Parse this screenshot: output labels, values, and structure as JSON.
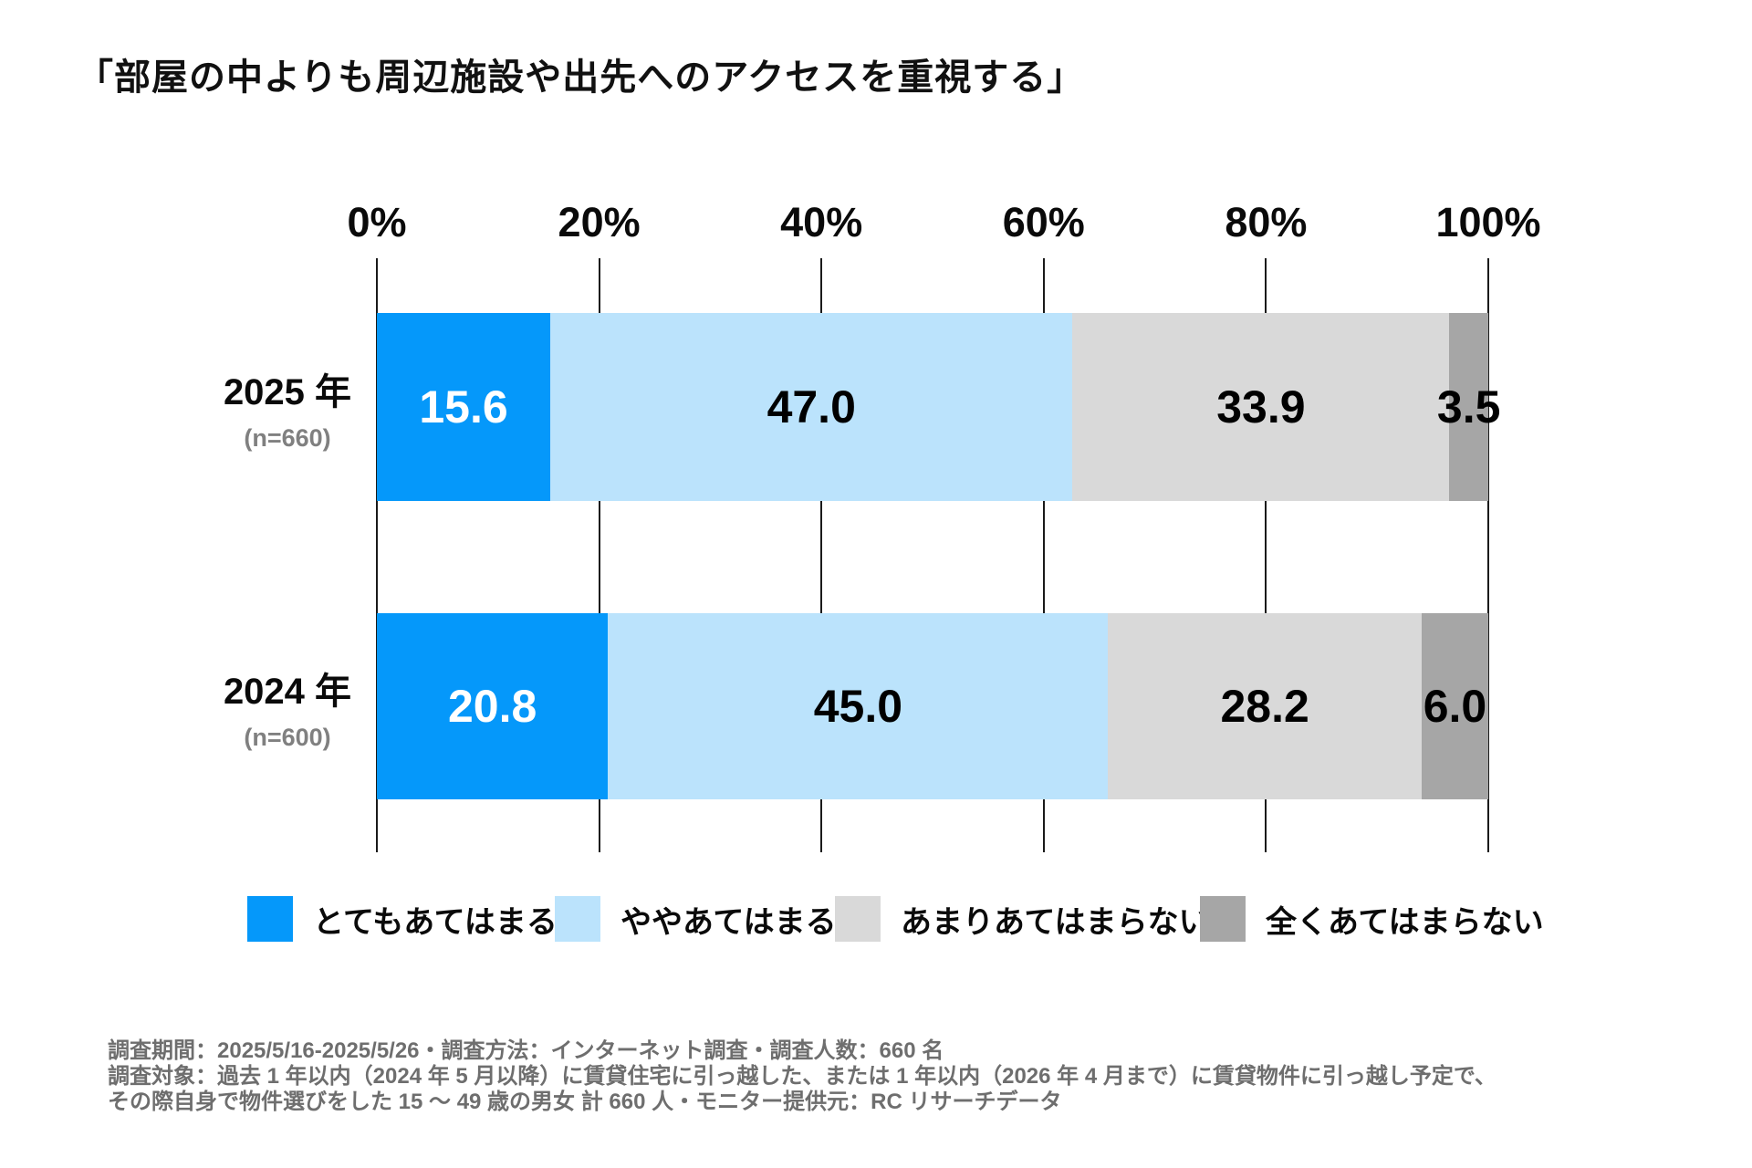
{
  "title": "「部屋の中よりも周辺施設や出先へのアクセスを重視する」",
  "chart_data": {
    "type": "bar",
    "variant": "horizontal-stacked-percent",
    "title": "「部屋の中よりも周辺施設や出先へのアクセスを重視する」",
    "x_axis": {
      "ticks": [
        "0%",
        "20%",
        "40%",
        "60%",
        "80%",
        "100%"
      ],
      "range": [
        0,
        100
      ],
      "position": "top",
      "grid": true
    },
    "legend_position": "bottom",
    "categories": [
      "2025 年",
      "2024 年"
    ],
    "rows": [
      {
        "label": "2025 年",
        "n_label": "(n=660)",
        "values": [
          15.6,
          47.0,
          33.9,
          3.5
        ]
      },
      {
        "label": "2024 年",
        "n_label": "(n=600)",
        "values": [
          20.8,
          45.0,
          28.2,
          6.0
        ]
      }
    ],
    "series": [
      {
        "name": "とてもあてはまる",
        "color": "#0598FA",
        "label_color": "#FFFFFF"
      },
      {
        "name": "ややあてはまる",
        "color": "#BBE3FC",
        "label_color": "#000000"
      },
      {
        "name": "あまりあてはまらない",
        "color": "#D9D9D9",
        "label_color": "#000000"
      },
      {
        "name": "全くあてはまらない",
        "color": "#A6A6A6",
        "label_color": "#000000"
      }
    ]
  },
  "footer": {
    "lines": [
      "調査期間：2025/5/16-2025/5/26・調査方法：インターネット調査・調査人数：660 名",
      "調査対象：過去 1 年以内（2024 年 5 月以降）に賃貸住宅に引っ越した、または 1 年以内（2026 年 4 月まで）に賃貸物件に引っ越し予定で、",
      "その際自身で物件選びをした 15 ～ 49 歳の男女 計 660 人・モニター提供元：RC リサーチデータ"
    ]
  }
}
